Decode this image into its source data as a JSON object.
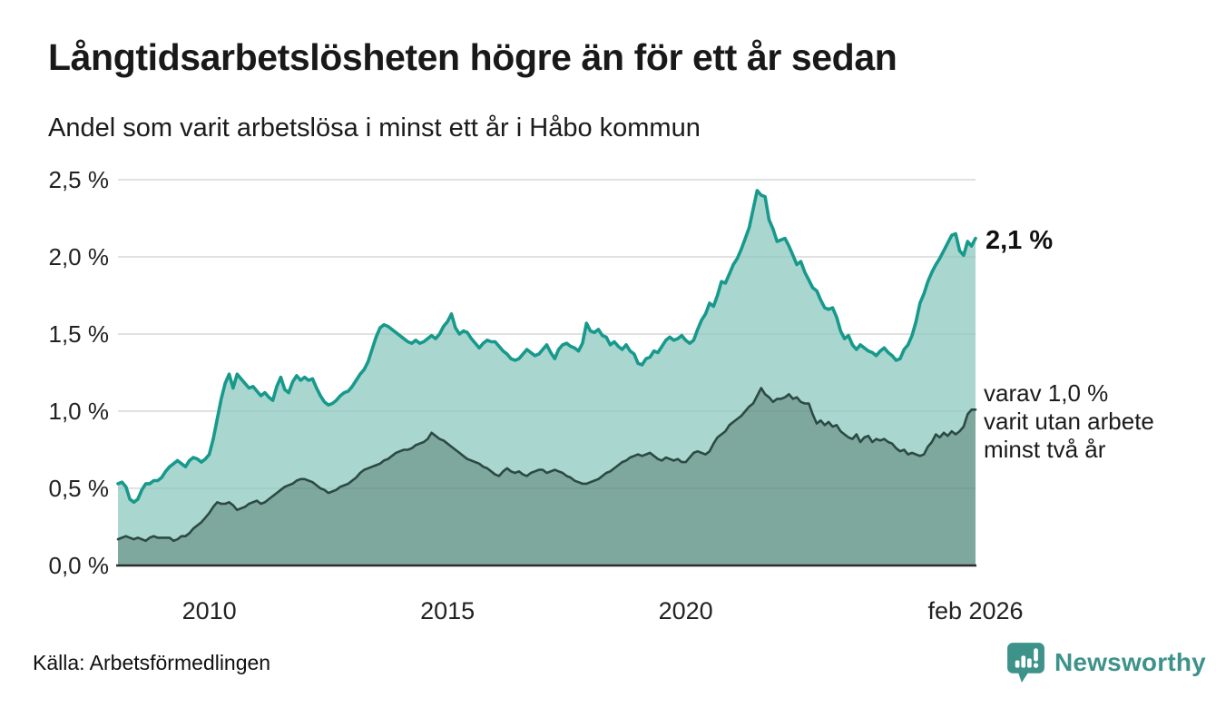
{
  "header": {
    "title": "Långtidsarbetslösheten högre än för ett år sedan",
    "subtitle": "Andel som varit arbetslösa i minst ett år i Håbo kommun"
  },
  "annotations": {
    "latest_total": "2,1 %",
    "two_year": [
      "varav 1,0 %",
      "varit utan arbete",
      "minst två år"
    ]
  },
  "footer": {
    "source": "Källa: Arbetsförmedlingen",
    "brand": "Newsworthy",
    "brand_icon": "newsworthy-speech-bubble-bar-chart-icon"
  },
  "colors": {
    "background": "#ffffff",
    "title_text": "#191919",
    "body_text": "#222222",
    "gridline": "#e3e3e3",
    "axis_line": "#2b2b2b",
    "series1_line": "#17998c",
    "series1_fill": "#a9d6cf",
    "series2_line": "#2c4a44",
    "series2_fill": "#7ea79e",
    "brand_teal": "#3d928a"
  },
  "chart_data": {
    "type": "area",
    "title": "Långtidsarbetslösheten högre än för ett år sedan",
    "subtitle": "Andel som varit arbetslösa i minst ett år i Håbo kommun",
    "x_unit": "month",
    "x_start": "feb 2008",
    "x_end": "feb 2026",
    "n_points": 217,
    "grid": true,
    "legend_position": "right-annotations",
    "ylim": [
      0,
      2.5
    ],
    "y_ticks": [
      {
        "value": 0.0,
        "label": "0,0 %"
      },
      {
        "value": 0.5,
        "label": "0,5 %"
      },
      {
        "value": 1.0,
        "label": "1,0 %"
      },
      {
        "value": 1.5,
        "label": "1,5 %"
      },
      {
        "value": 2.0,
        "label": "2,0 %"
      },
      {
        "value": 2.5,
        "label": "2,5 %"
      }
    ],
    "x_ticks": [
      {
        "index": 23,
        "label": "2010"
      },
      {
        "index": 83,
        "label": "2015"
      },
      {
        "index": 143,
        "label": "2020"
      },
      {
        "index": 216,
        "label": "feb 2026"
      }
    ],
    "series": [
      {
        "name": "Andel som varit arbetslösa minst ett år",
        "line_color": "#17998c",
        "fill_color": "#a9d6cf",
        "last_value_label": "2,1 %",
        "values": [
          0.53,
          0.54,
          0.51,
          0.43,
          0.41,
          0.43,
          0.49,
          0.53,
          0.53,
          0.55,
          0.55,
          0.57,
          0.61,
          0.64,
          0.66,
          0.68,
          0.66,
          0.64,
          0.68,
          0.7,
          0.69,
          0.67,
          0.69,
          0.72,
          0.82,
          0.95,
          1.08,
          1.18,
          1.24,
          1.15,
          1.24,
          1.21,
          1.18,
          1.15,
          1.16,
          1.13,
          1.1,
          1.12,
          1.09,
          1.07,
          1.16,
          1.22,
          1.14,
          1.12,
          1.19,
          1.23,
          1.2,
          1.22,
          1.2,
          1.21,
          1.15,
          1.1,
          1.06,
          1.04,
          1.05,
          1.07,
          1.1,
          1.12,
          1.13,
          1.16,
          1.2,
          1.24,
          1.27,
          1.32,
          1.4,
          1.48,
          1.54,
          1.56,
          1.55,
          1.53,
          1.51,
          1.49,
          1.47,
          1.45,
          1.44,
          1.46,
          1.44,
          1.45,
          1.47,
          1.49,
          1.47,
          1.5,
          1.55,
          1.58,
          1.63,
          1.54,
          1.5,
          1.52,
          1.51,
          1.47,
          1.44,
          1.41,
          1.44,
          1.46,
          1.45,
          1.45,
          1.42,
          1.39,
          1.37,
          1.34,
          1.33,
          1.34,
          1.37,
          1.4,
          1.38,
          1.36,
          1.37,
          1.4,
          1.43,
          1.38,
          1.34,
          1.4,
          1.43,
          1.44,
          1.42,
          1.41,
          1.39,
          1.44,
          1.57,
          1.52,
          1.51,
          1.53,
          1.49,
          1.48,
          1.43,
          1.45,
          1.42,
          1.4,
          1.43,
          1.39,
          1.37,
          1.31,
          1.3,
          1.34,
          1.35,
          1.39,
          1.38,
          1.42,
          1.46,
          1.48,
          1.46,
          1.47,
          1.49,
          1.46,
          1.44,
          1.46,
          1.53,
          1.59,
          1.63,
          1.7,
          1.68,
          1.75,
          1.84,
          1.83,
          1.89,
          1.95,
          1.99,
          2.05,
          2.12,
          2.19,
          2.31,
          2.43,
          2.4,
          2.39,
          2.24,
          2.18,
          2.1,
          2.11,
          2.12,
          2.07,
          2.01,
          1.95,
          1.97,
          1.9,
          1.85,
          1.8,
          1.78,
          1.72,
          1.67,
          1.66,
          1.67,
          1.61,
          1.52,
          1.47,
          1.49,
          1.43,
          1.4,
          1.43,
          1.41,
          1.39,
          1.38,
          1.36,
          1.39,
          1.41,
          1.38,
          1.36,
          1.33,
          1.34,
          1.4,
          1.43,
          1.49,
          1.58,
          1.7,
          1.76,
          1.84,
          1.9,
          1.95,
          1.99,
          2.04,
          2.09,
          2.14,
          2.15,
          2.04,
          2.01,
          2.1,
          2.07,
          2.12
        ]
      },
      {
        "name": "varav utan arbete minst två år",
        "line_color": "#2c4a44",
        "fill_color": "#7ea79e",
        "last_value_label": "1,0 %",
        "values": [
          0.17,
          0.18,
          0.19,
          0.18,
          0.17,
          0.18,
          0.17,
          0.16,
          0.18,
          0.19,
          0.18,
          0.18,
          0.18,
          0.18,
          0.16,
          0.17,
          0.19,
          0.19,
          0.21,
          0.24,
          0.26,
          0.28,
          0.31,
          0.34,
          0.38,
          0.41,
          0.4,
          0.4,
          0.41,
          0.39,
          0.36,
          0.37,
          0.38,
          0.4,
          0.41,
          0.42,
          0.4,
          0.41,
          0.43,
          0.45,
          0.47,
          0.49,
          0.51,
          0.52,
          0.53,
          0.55,
          0.56,
          0.56,
          0.55,
          0.54,
          0.52,
          0.5,
          0.49,
          0.47,
          0.48,
          0.49,
          0.51,
          0.52,
          0.53,
          0.55,
          0.57,
          0.6,
          0.62,
          0.63,
          0.64,
          0.65,
          0.66,
          0.68,
          0.69,
          0.71,
          0.73,
          0.74,
          0.75,
          0.75,
          0.76,
          0.78,
          0.79,
          0.8,
          0.82,
          0.86,
          0.84,
          0.82,
          0.81,
          0.79,
          0.77,
          0.75,
          0.73,
          0.71,
          0.69,
          0.68,
          0.67,
          0.66,
          0.64,
          0.63,
          0.61,
          0.59,
          0.58,
          0.61,
          0.63,
          0.61,
          0.6,
          0.61,
          0.59,
          0.58,
          0.6,
          0.61,
          0.62,
          0.62,
          0.6,
          0.61,
          0.62,
          0.61,
          0.6,
          0.58,
          0.57,
          0.55,
          0.54,
          0.53,
          0.53,
          0.54,
          0.55,
          0.56,
          0.58,
          0.6,
          0.61,
          0.63,
          0.65,
          0.67,
          0.68,
          0.7,
          0.71,
          0.72,
          0.71,
          0.72,
          0.73,
          0.71,
          0.69,
          0.68,
          0.7,
          0.69,
          0.68,
          0.69,
          0.67,
          0.67,
          0.7,
          0.73,
          0.74,
          0.73,
          0.72,
          0.74,
          0.79,
          0.83,
          0.85,
          0.87,
          0.91,
          0.93,
          0.95,
          0.97,
          1.0,
          1.03,
          1.05,
          1.1,
          1.15,
          1.11,
          1.09,
          1.06,
          1.08,
          1.08,
          1.09,
          1.11,
          1.08,
          1.09,
          1.06,
          1.05,
          1.05,
          0.98,
          0.92,
          0.94,
          0.91,
          0.93,
          0.9,
          0.91,
          0.87,
          0.85,
          0.83,
          0.82,
          0.85,
          0.8,
          0.83,
          0.84,
          0.8,
          0.82,
          0.81,
          0.82,
          0.8,
          0.79,
          0.76,
          0.74,
          0.75,
          0.72,
          0.73,
          0.72,
          0.71,
          0.72,
          0.77,
          0.8,
          0.85,
          0.83,
          0.86,
          0.84,
          0.87,
          0.85,
          0.87,
          0.9,
          0.98,
          1.01,
          1.01
        ]
      }
    ]
  }
}
